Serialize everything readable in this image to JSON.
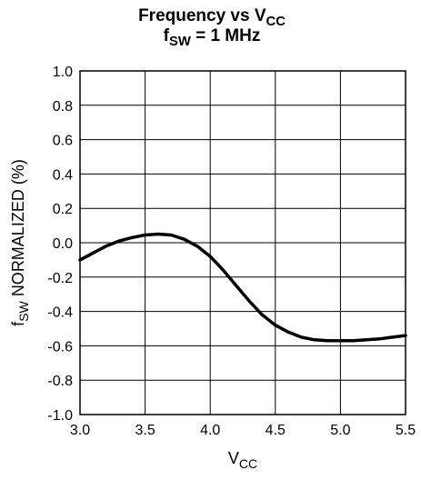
{
  "chart_data": {
    "type": "line",
    "title_lines": [
      {
        "main": "Frequency vs V",
        "sub": "CC",
        "after": ""
      },
      {
        "main": "f",
        "sub": "SW",
        "after": " = 1 MHz"
      }
    ],
    "xlabel": {
      "main": "V",
      "sub": "CC"
    },
    "ylabel": {
      "main": "f",
      "sub": "SW",
      "after": " NORMALIZED (%)"
    },
    "xlim": [
      3.0,
      5.5
    ],
    "ylim": [
      -1.0,
      1.0
    ],
    "x_ticks": [
      "3.0",
      "3.5",
      "4.0",
      "4.5",
      "5.0",
      "5.5"
    ],
    "y_ticks": [
      "1.0",
      "0.8",
      "0.6",
      "0.4",
      "0.2",
      "0.0",
      "-0.2",
      "-0.4",
      "-0.6",
      "-0.8",
      "-1.0"
    ],
    "grid": true,
    "series": [
      {
        "x": [
          3.0,
          3.1,
          3.2,
          3.3,
          3.4,
          3.5,
          3.6,
          3.7,
          3.8,
          3.9,
          4.0,
          4.1,
          4.2,
          4.3,
          4.4,
          4.5,
          4.6,
          4.7,
          4.8,
          4.9,
          5.0,
          5.1,
          5.2,
          5.3,
          5.4,
          5.5
        ],
        "y": [
          -0.1,
          -0.06,
          -0.02,
          0.01,
          0.03,
          0.045,
          0.05,
          0.045,
          0.02,
          -0.02,
          -0.08,
          -0.16,
          -0.25,
          -0.34,
          -0.42,
          -0.48,
          -0.52,
          -0.55,
          -0.565,
          -0.57,
          -0.57,
          -0.57,
          -0.565,
          -0.56,
          -0.55,
          -0.54
        ]
      }
    ]
  }
}
